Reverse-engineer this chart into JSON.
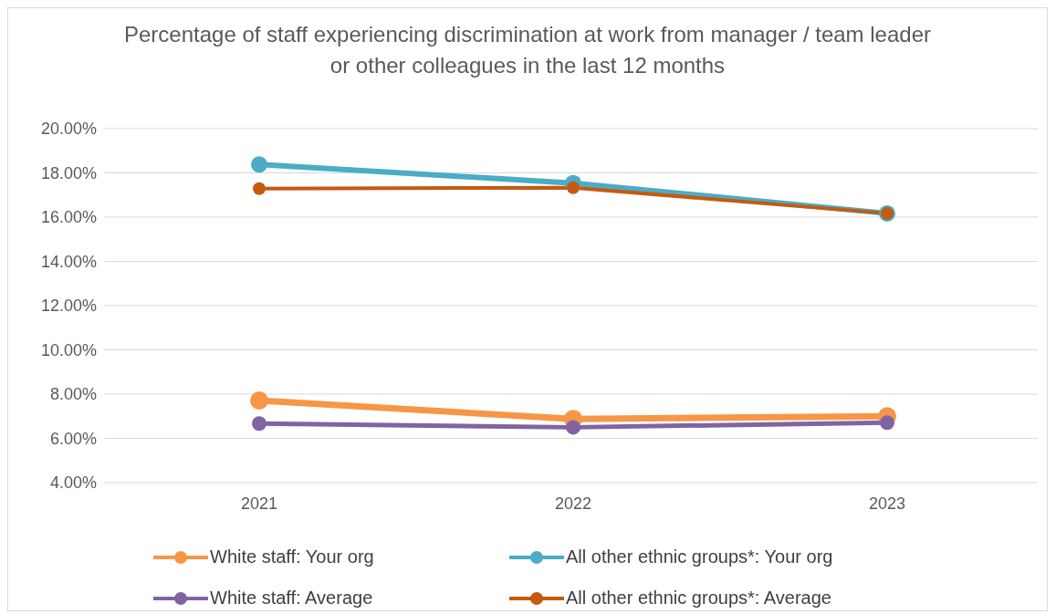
{
  "chart_data": {
    "type": "line",
    "title": "Percentage of staff experiencing discrimination at work from manager / team leader or other colleagues in the last 12 months",
    "categories": [
      "2021",
      "2022",
      "2023"
    ],
    "series": [
      {
        "name": "White staff: Your org",
        "color": "#f79646",
        "values": [
          7.71,
          6.88,
          7.0
        ]
      },
      {
        "name": "All other ethnic groups*: Your org",
        "color": "#4bacc6",
        "values": [
          18.38,
          17.54,
          16.17
        ]
      },
      {
        "name": "White staff: Average",
        "color": "#8064a2",
        "values": [
          6.67,
          6.5,
          6.71
        ]
      },
      {
        "name": "All other ethnic groups*: Average",
        "color": "#c55a11",
        "values": [
          17.29,
          17.33,
          16.17
        ]
      }
    ],
    "ylim": [
      4,
      20
    ],
    "yticks": [
      {
        "value": 4,
        "label": "4.00%"
      },
      {
        "value": 6,
        "label": "6.00%"
      },
      {
        "value": 8,
        "label": "8.00%"
      },
      {
        "value": 10,
        "label": "10.00%"
      },
      {
        "value": 12,
        "label": "12.00%"
      },
      {
        "value": 14,
        "label": "14.00%"
      },
      {
        "value": 16,
        "label": "16.00%"
      },
      {
        "value": 18,
        "label": "18.00%"
      },
      {
        "value": 20,
        "label": "20.00%"
      }
    ],
    "grid": "y",
    "legend": "bottom",
    "marker": "circle",
    "line_style": "solid"
  }
}
